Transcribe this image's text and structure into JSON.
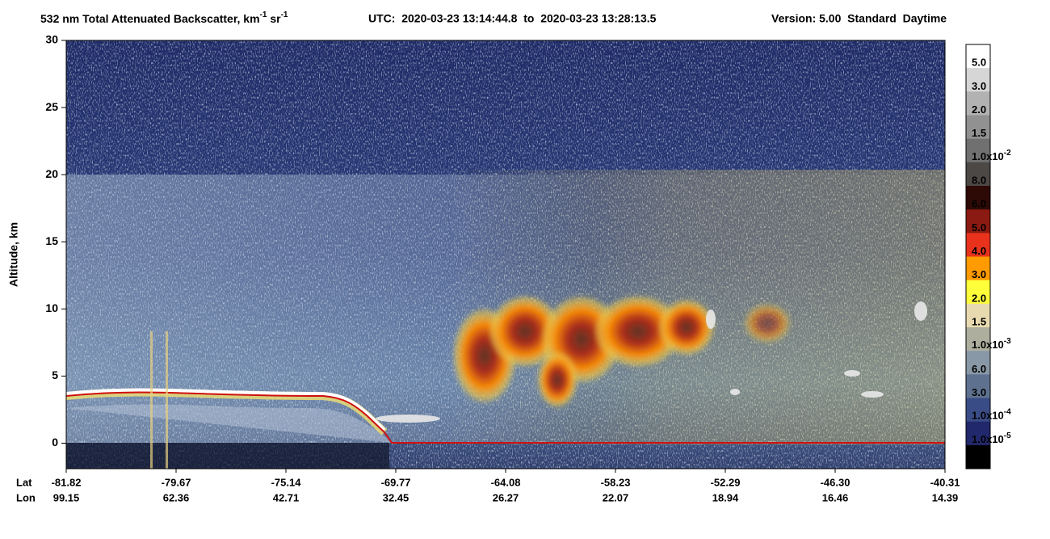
{
  "chart_data": {
    "type": "curtain",
    "title": [
      "532 nm Total Attenuated Backscatter, km",
      "-1",
      " sr",
      "-1"
    ],
    "subtitle": "UTC:  2020-03-23 13:14:44.8  to  2020-03-23 13:28:13.5",
    "version": "Version: 5.00  Standard  Daytime",
    "ylabel": "Altitude, km",
    "ylim": [
      -1.9,
      30
    ],
    "yticks": [
      0,
      5,
      10,
      15,
      20,
      25,
      30
    ],
    "x_rows": [
      {
        "name": "Lat",
        "values": [
          -81.82,
          -79.67,
          -75.14,
          -69.77,
          -64.08,
          -58.23,
          -52.29,
          {
            "value": -46.3,
            "label": "-46.30"
          },
          -40.31
        ]
      },
      {
        "name": "Lon",
        "values": [
          99.15,
          62.36,
          42.71,
          32.45,
          26.27,
          22.07,
          18.94,
          16.46,
          14.39
        ]
      }
    ],
    "colorbar": {
      "colors": [
        "#ffffff",
        "#d6d6d6",
        "#b2b2b2",
        "#919191",
        "#707070",
        "#4c4846",
        "#2e0a06",
        "#8a1a12",
        "#e8321c",
        "#ff9a00",
        "#ffff3a",
        "#e8dab0",
        "#aeae9e",
        "#8898a6",
        "#5e7290",
        "#3a4c86",
        "#22286c",
        "#000000"
      ],
      "labels": [
        "5.0",
        "3.0",
        "2.0",
        "1.5",
        {
          "base": "1.0x10",
          "exp": "-2"
        },
        "8.0",
        "6.0",
        "5.0",
        "4.0",
        "3.0",
        "2.0",
        "1.5",
        {
          "base": "1.0x10",
          "exp": "-3"
        },
        "6.0",
        "3.0",
        {
          "base": "1.0x10",
          "exp": "-4"
        },
        {
          "base": "1.0x10",
          "exp": "-5"
        }
      ]
    }
  }
}
